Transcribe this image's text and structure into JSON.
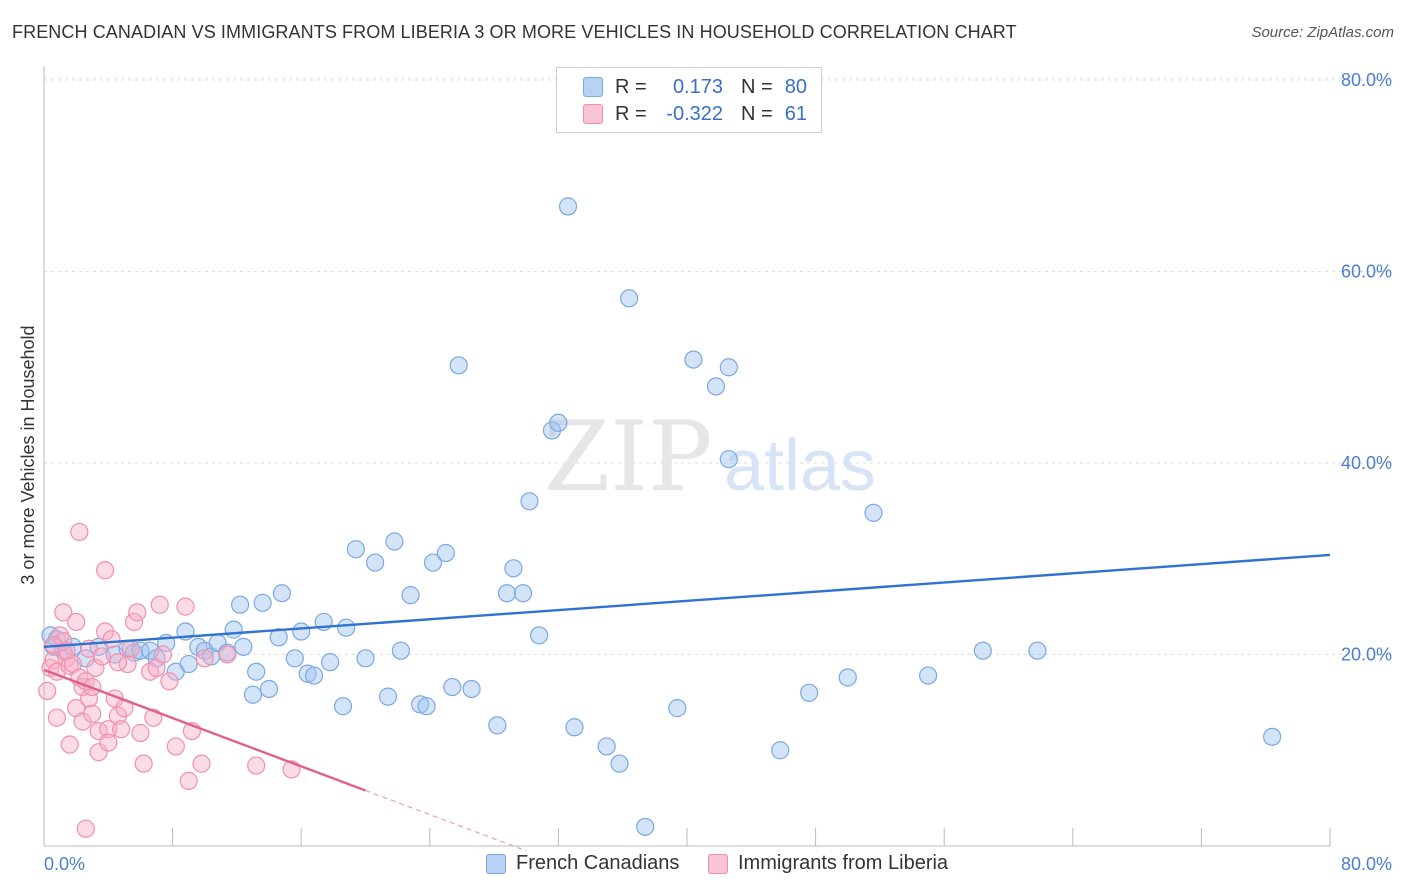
{
  "title": "FRENCH CANADIAN VS IMMIGRANTS FROM LIBERIA 3 OR MORE VEHICLES IN HOUSEHOLD CORRELATION CHART",
  "source": "Source: ZipAtlas.com",
  "watermark": {
    "zip": "ZIP",
    "atlas": "atlas"
  },
  "legend": {
    "r_label": "R =",
    "n_label": "N =",
    "rows": [
      {
        "name": "French Canadians",
        "r": "0.173",
        "n": "80",
        "color": "#7aaae8",
        "fill": "#b8d2f4"
      },
      {
        "name": "Immigrants from Liberia",
        "r": "-0.322",
        "n": "61",
        "color": "#f08cac",
        "fill": "#f9c4d4"
      }
    ]
  },
  "chart_data": {
    "type": "scatter",
    "title": "FRENCH CANADIAN VS IMMIGRANTS FROM LIBERIA 3 OR MORE VEHICLES IN HOUSEHOLD CORRELATION CHART",
    "xlabel": "",
    "ylabel": "3 or more Vehicles in Household",
    "xlim": [
      0,
      80
    ],
    "ylim": [
      0,
      80
    ],
    "x_tick_labels": [
      "0.0%",
      "80.0%"
    ],
    "y_tick_labels": [
      "20.0%",
      "40.0%",
      "60.0%",
      "80.0%"
    ],
    "y_ticks": [
      20,
      40,
      60,
      80
    ],
    "grid": true,
    "legend_position": "top-center",
    "series": [
      {
        "name": "French Canadians",
        "color": "#4a86d8",
        "trend": {
          "x": [
            0,
            80
          ],
          "y": [
            20.8,
            30.4
          ]
        },
        "points": [
          [
            0.4,
            22.0
          ],
          [
            0.8,
            21.6
          ],
          [
            1.2,
            20.4
          ],
          [
            1.8,
            20.8
          ],
          [
            2.6,
            19.6
          ],
          [
            3.4,
            20.8
          ],
          [
            4.4,
            20.0
          ],
          [
            5.2,
            20.6
          ],
          [
            5.6,
            20.2
          ],
          [
            6.0,
            20.4
          ],
          [
            6.6,
            20.4
          ],
          [
            7.0,
            19.6
          ],
          [
            7.6,
            21.2
          ],
          [
            8.2,
            18.2
          ],
          [
            8.8,
            22.4
          ],
          [
            9.0,
            19.0
          ],
          [
            9.6,
            20.8
          ],
          [
            10.0,
            20.4
          ],
          [
            10.4,
            19.8
          ],
          [
            10.8,
            21.2
          ],
          [
            11.4,
            20.2
          ],
          [
            11.8,
            22.6
          ],
          [
            12.2,
            25.2
          ],
          [
            12.4,
            20.8
          ],
          [
            13.0,
            15.8
          ],
          [
            13.2,
            18.2
          ],
          [
            13.6,
            25.4
          ],
          [
            14.0,
            16.4
          ],
          [
            14.6,
            21.8
          ],
          [
            14.8,
            26.4
          ],
          [
            15.6,
            19.6
          ],
          [
            16.0,
            22.4
          ],
          [
            16.4,
            18.0
          ],
          [
            16.8,
            17.8
          ],
          [
            17.4,
            23.4
          ],
          [
            17.8,
            19.2
          ],
          [
            18.6,
            14.6
          ],
          [
            18.8,
            22.8
          ],
          [
            19.4,
            31.0
          ],
          [
            20.0,
            19.6
          ],
          [
            20.6,
            29.6
          ],
          [
            21.4,
            15.6
          ],
          [
            21.8,
            31.8
          ],
          [
            22.2,
            20.4
          ],
          [
            22.8,
            26.2
          ],
          [
            23.4,
            14.8
          ],
          [
            23.8,
            14.6
          ],
          [
            24.2,
            29.6
          ],
          [
            25.0,
            30.6
          ],
          [
            25.4,
            16.6
          ],
          [
            25.8,
            50.2
          ],
          [
            26.6,
            16.4
          ],
          [
            28.2,
            12.6
          ],
          [
            28.8,
            26.4
          ],
          [
            29.2,
            29.0
          ],
          [
            29.8,
            26.4
          ],
          [
            30.2,
            36.0
          ],
          [
            30.8,
            22.0
          ],
          [
            31.6,
            43.4
          ],
          [
            32.0,
            44.2
          ],
          [
            32.6,
            66.8
          ],
          [
            33.0,
            12.4
          ],
          [
            35.0,
            10.4
          ],
          [
            35.8,
            8.6
          ],
          [
            36.4,
            57.2
          ],
          [
            37.4,
            2.0
          ],
          [
            39.4,
            14.4
          ],
          [
            40.4,
            50.8
          ],
          [
            41.8,
            48.0
          ],
          [
            42.6,
            40.4
          ],
          [
            42.6,
            50.0
          ],
          [
            45.8,
            10.0
          ],
          [
            47.6,
            16.0
          ],
          [
            50.0,
            17.6
          ],
          [
            51.6,
            34.8
          ],
          [
            55.0,
            17.8
          ],
          [
            58.4,
            20.4
          ],
          [
            61.8,
            20.4
          ],
          [
            76.4,
            11.4
          ],
          [
            0.6,
            20.8
          ]
        ]
      },
      {
        "name": "Immigrants from Liberia",
        "color": "#e8729a",
        "trend": {
          "x": [
            0,
            20
          ],
          "y": [
            18.4,
            5.8
          ]
        },
        "trend_dashed": {
          "x": [
            20,
            30
          ],
          "y": [
            5.8,
            -0.5
          ]
        },
        "points": [
          [
            0.2,
            16.2
          ],
          [
            0.4,
            18.6
          ],
          [
            0.6,
            19.4
          ],
          [
            0.8,
            18.2
          ],
          [
            0.8,
            13.4
          ],
          [
            1.0,
            22.0
          ],
          [
            1.2,
            21.4
          ],
          [
            1.2,
            24.4
          ],
          [
            1.4,
            19.6
          ],
          [
            1.6,
            10.6
          ],
          [
            1.6,
            18.8
          ],
          [
            1.8,
            19.0
          ],
          [
            2.0,
            23.4
          ],
          [
            2.0,
            14.4
          ],
          [
            2.2,
            17.6
          ],
          [
            2.2,
            32.8
          ],
          [
            2.4,
            16.6
          ],
          [
            2.4,
            13.0
          ],
          [
            2.6,
            17.2
          ],
          [
            2.8,
            15.4
          ],
          [
            2.8,
            20.6
          ],
          [
            3.0,
            13.8
          ],
          [
            3.2,
            18.6
          ],
          [
            3.4,
            12.0
          ],
          [
            3.4,
            9.8
          ],
          [
            3.6,
            19.8
          ],
          [
            3.8,
            22.4
          ],
          [
            3.8,
            28.8
          ],
          [
            4.0,
            12.2
          ],
          [
            4.0,
            10.8
          ],
          [
            4.2,
            21.6
          ],
          [
            4.4,
            15.4
          ],
          [
            4.6,
            13.6
          ],
          [
            4.8,
            12.2
          ],
          [
            5.0,
            14.4
          ],
          [
            5.2,
            19.0
          ],
          [
            5.4,
            20.6
          ],
          [
            5.6,
            23.4
          ],
          [
            5.8,
            24.4
          ],
          [
            6.0,
            11.8
          ],
          [
            6.2,
            8.6
          ],
          [
            6.6,
            18.2
          ],
          [
            6.8,
            13.4
          ],
          [
            7.0,
            18.6
          ],
          [
            7.2,
            25.2
          ],
          [
            7.4,
            20.0
          ],
          [
            7.8,
            17.2
          ],
          [
            8.2,
            10.4
          ],
          [
            8.8,
            25.0
          ],
          [
            9.0,
            6.8
          ],
          [
            9.2,
            12.0
          ],
          [
            9.8,
            8.6
          ],
          [
            10.0,
            19.6
          ],
          [
            11.4,
            20.0
          ],
          [
            13.2,
            8.4
          ],
          [
            15.4,
            8.0
          ],
          [
            2.6,
            1.8
          ],
          [
            0.6,
            21.0
          ],
          [
            1.4,
            20.4
          ],
          [
            3.0,
            16.6
          ],
          [
            4.6,
            19.2
          ]
        ]
      }
    ]
  }
}
